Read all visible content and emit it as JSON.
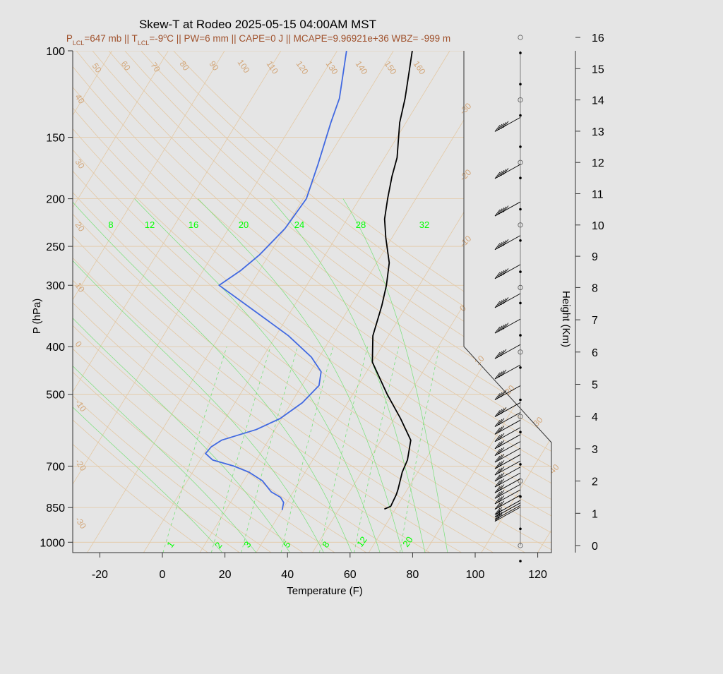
{
  "chart_data": {
    "type": "skew-t",
    "title": "Skew-T at Rodeo 2025-05-15 04:00AM MST",
    "subtitle": {
      "plcl": "647 mb",
      "tlcl": "-9",
      "pw": "6 mm",
      "cape": "0 J",
      "mcape": "9.96921e+36",
      "wbz": "-999 m"
    },
    "xlabel": "Temperature (F)",
    "ylabel": "P (hPa)",
    "y2label": "Height (Km)",
    "xticks": [
      "-20",
      "0",
      "20",
      "40",
      "60",
      "80",
      "100",
      "120"
    ],
    "xlim": [
      -28,
      125
    ],
    "pressure_ticks": [
      "100",
      "150",
      "200",
      "250",
      "300",
      "400",
      "500",
      "700",
      "850",
      "1000"
    ],
    "height_ticks": [
      "0",
      "1",
      "2",
      "3",
      "4",
      "5",
      "6",
      "7",
      "8",
      "9",
      "10",
      "11",
      "12",
      "13",
      "14",
      "15",
      "16"
    ],
    "mixing_ratio_top_labels": [
      "8",
      "12",
      "16",
      "20",
      "24",
      "28",
      "32"
    ],
    "mixing_ratio_bottom_labels": [
      "1",
      "2",
      "3",
      "5",
      "8",
      "12",
      "20"
    ],
    "dry_adiabat_labels": [
      "50",
      "60",
      "70",
      "80",
      "90",
      "100",
      "110",
      "120",
      "130",
      "140",
      "150",
      "160"
    ],
    "left_labels": [
      "40",
      "30",
      "20",
      "10",
      "0",
      "-10",
      "-20",
      "-30"
    ],
    "right_isotherm_labels": [
      "-30",
      "-20",
      "-10",
      "0",
      "10",
      "20",
      "30",
      "40"
    ],
    "colors": {
      "temperature": "#000000",
      "dewpoint": "#4169e1",
      "background_lines": "#e3c8a4",
      "moist_lines": "#78e078",
      "mixing_labels": "#00ff00",
      "subtitle": "#a0522d"
    },
    "series": [
      {
        "name": "temperature",
        "points": [
          [
            856,
            64.5
          ],
          [
            845,
            66.0
          ],
          [
            800,
            65.5
          ],
          [
            780,
            65.0
          ],
          [
            720,
            63.0
          ],
          [
            680,
            62.3
          ],
          [
            620,
            59.5
          ],
          [
            560,
            52.0
          ],
          [
            500,
            43.0
          ],
          [
            430,
            32.0
          ],
          [
            380,
            27.0
          ],
          [
            330,
            24.0
          ],
          [
            300,
            21.5
          ],
          [
            270,
            18.0
          ],
          [
            240,
            12.0
          ],
          [
            220,
            8.0
          ],
          [
            200,
            5.0
          ],
          [
            180,
            2.0
          ],
          [
            165,
            0.0
          ],
          [
            140,
            -6.0
          ],
          [
            125,
            -9.0
          ],
          [
            110,
            -13.0
          ],
          [
            100,
            -16.0
          ]
        ]
      },
      {
        "name": "dewpoint",
        "points": [
          [
            860,
            32.0
          ],
          [
            830,
            31.0
          ],
          [
            810,
            29.0
          ],
          [
            790,
            25.0
          ],
          [
            750,
            20.0
          ],
          [
            720,
            14.0
          ],
          [
            700,
            8.0
          ],
          [
            680,
            0.0
          ],
          [
            660,
            -3.5
          ],
          [
            640,
            -3.0
          ],
          [
            620,
            -1.0
          ],
          [
            590,
            8.0
          ],
          [
            560,
            13.5
          ],
          [
            520,
            17.5
          ],
          [
            480,
            19.5
          ],
          [
            450,
            17.5
          ],
          [
            420,
            11.5
          ],
          [
            380,
            0.0
          ],
          [
            340,
            -15.0
          ],
          [
            300,
            -32.0
          ],
          [
            280,
            -28.0
          ],
          [
            260,
            -25.0
          ],
          [
            230,
            -22.0
          ],
          [
            200,
            -21.0
          ],
          [
            170,
            -24.0
          ],
          [
            140,
            -28.0
          ],
          [
            125,
            -30.0
          ],
          [
            110,
            -34.0
          ],
          [
            100,
            -37.0
          ]
        ]
      }
    ],
    "wind_barbs": [
      {
        "p": 857,
        "spd": 10
      },
      {
        "p": 850,
        "spd": 10
      },
      {
        "p": 840,
        "spd": 10
      },
      {
        "p": 830,
        "spd": 10
      },
      {
        "p": 810,
        "spd": 15
      },
      {
        "p": 790,
        "spd": 15
      },
      {
        "p": 770,
        "spd": 15
      },
      {
        "p": 750,
        "spd": 15
      },
      {
        "p": 730,
        "spd": 15
      },
      {
        "p": 710,
        "spd": 15
      },
      {
        "p": 690,
        "spd": 15
      },
      {
        "p": 670,
        "spd": 15
      },
      {
        "p": 650,
        "spd": 15
      },
      {
        "p": 630,
        "spd": 15
      },
      {
        "p": 610,
        "spd": 15
      },
      {
        "p": 590,
        "spd": 15
      },
      {
        "p": 570,
        "spd": 15
      },
      {
        "p": 550,
        "spd": 15
      },
      {
        "p": 525,
        "spd": 20
      },
      {
        "p": 485,
        "spd": 20
      },
      {
        "p": 440,
        "spd": 20
      },
      {
        "p": 400,
        "spd": 20
      },
      {
        "p": 355,
        "spd": 25
      },
      {
        "p": 315,
        "spd": 25
      },
      {
        "p": 275,
        "spd": 25
      },
      {
        "p": 240,
        "spd": 25
      },
      {
        "p": 205,
        "spd": 25
      },
      {
        "p": 172,
        "spd": 25
      },
      {
        "p": 138,
        "spd": 25
      }
    ]
  }
}
